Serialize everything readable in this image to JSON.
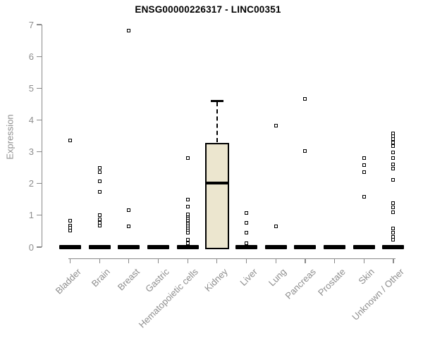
{
  "chart_data": {
    "type": "boxplot",
    "title": "ENSG00000226317 - LINC00351",
    "ylabel": "Expression",
    "xlabel": "",
    "ylim": [
      0,
      7
    ],
    "yticks": [
      0,
      1,
      2,
      3,
      4,
      5,
      6,
      7
    ],
    "grid": false,
    "legend": "none",
    "categories": [
      "Bladder",
      "Brain",
      "Breast",
      "Gastric",
      "Hematopoietic cells",
      "Kidney",
      "Liver",
      "Lung",
      "Pancreas",
      "Prostate",
      "Skin",
      "Unknown / Other"
    ],
    "groups": [
      {
        "label": "Bladder",
        "type": "flat",
        "median": 0,
        "outliers": [
          3.35,
          0.82,
          0.68,
          0.6,
          0.52
        ]
      },
      {
        "label": "Brain",
        "type": "flat",
        "median": 0,
        "outliers": [
          2.5,
          2.37,
          2.07,
          1.75,
          1.0,
          0.87,
          0.77,
          0.67
        ]
      },
      {
        "label": "Breast",
        "type": "flat",
        "median": 0,
        "outliers": [
          6.82,
          1.16,
          0.66
        ]
      },
      {
        "label": "Gastric",
        "type": "flat",
        "median": 0,
        "outliers": []
      },
      {
        "label": "Hematopoietic cells",
        "type": "flat",
        "median": 0,
        "outliers": [
          2.8,
          1.5,
          1.27,
          1.02,
          0.95,
          0.89,
          0.83,
          0.77,
          0.71,
          0.65,
          0.59,
          0.53,
          0.45,
          0.23,
          0.12
        ]
      },
      {
        "label": "Kidney",
        "type": "box",
        "q1": 0,
        "median": 2.02,
        "q3": 3.27,
        "whisker_high": 4.6,
        "whisker_low": 0,
        "outliers": []
      },
      {
        "label": "Liver",
        "type": "flat",
        "median": 0,
        "outliers": [
          1.07,
          0.76,
          0.45,
          0.12
        ]
      },
      {
        "label": "Lung",
        "type": "flat",
        "median": 0,
        "outliers": [
          3.83,
          0.65
        ]
      },
      {
        "label": "Pancreas",
        "type": "flat",
        "median": 0,
        "outliers": [
          4.67,
          3.02
        ]
      },
      {
        "label": "Prostate",
        "type": "flat",
        "median": 0,
        "outliers": []
      },
      {
        "label": "Skin",
        "type": "flat",
        "median": 0,
        "outliers": [
          2.8,
          2.58,
          2.36,
          1.58
        ]
      },
      {
        "label": "Unknown / Other",
        "type": "flat",
        "median": 0,
        "outliers": [
          3.58,
          3.48,
          3.39,
          3.29,
          3.19,
          2.97,
          2.81,
          2.61,
          2.48,
          2.12,
          1.38,
          1.25,
          1.09,
          0.58,
          0.45,
          0.33,
          0.24
        ]
      }
    ],
    "colors": {
      "box_fill": "#ECE6CF",
      "box_border": "#000000",
      "median": "#000000",
      "point": "#000000",
      "axis": "#898989",
      "tick_text": "#8e8e8e",
      "title_text": "#000000",
      "background": "#ffffff"
    }
  }
}
